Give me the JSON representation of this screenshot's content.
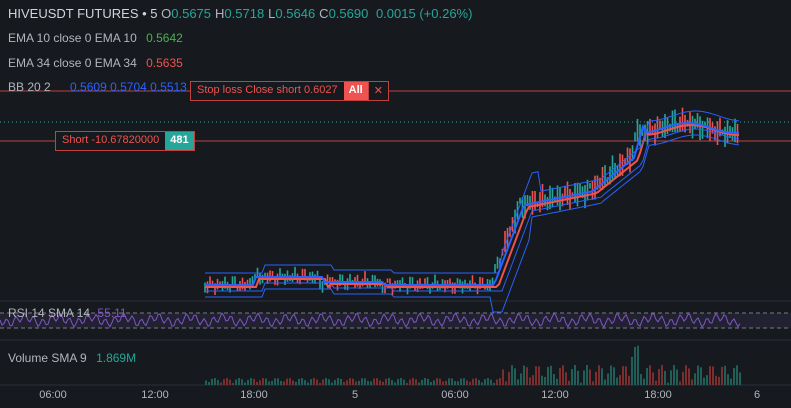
{
  "header": {
    "symbol": "HIVEUSDT FUTURES • 5",
    "ohlc": [
      {
        "key": "O",
        "value": "0.5675"
      },
      {
        "key": "H",
        "value": "0.5718"
      },
      {
        "key": "L",
        "value": "0.5646"
      },
      {
        "key": "C",
        "value": "0.5690"
      }
    ],
    "change": "0.0015 (+0.26%)"
  },
  "indicators": [
    {
      "label": "EMA 10 close 0 EMA 10",
      "values": [
        "0.5642"
      ]
    },
    {
      "label": "EMA 34 close 0 EMA 34",
      "values": [
        "0.5635"
      ]
    },
    {
      "label": "BB 20 2",
      "values": [
        "0.5609",
        "0.5704",
        "0.5513"
      ]
    }
  ],
  "orders": {
    "stop": {
      "label": "Stop loss Close short 0.6027",
      "button": "All"
    },
    "position": {
      "label": "Short -10.67820000",
      "qty": "481"
    }
  },
  "rsi": {
    "label": "RSI 14 SMA 14",
    "value": "55.11"
  },
  "volume": {
    "label": "Volume SMA 9",
    "value": "1.869M"
  },
  "x_axis": [
    "06:00",
    "12:00",
    "18:00",
    "5",
    "06:00",
    "12:00",
    "18:00",
    "6"
  ]
}
